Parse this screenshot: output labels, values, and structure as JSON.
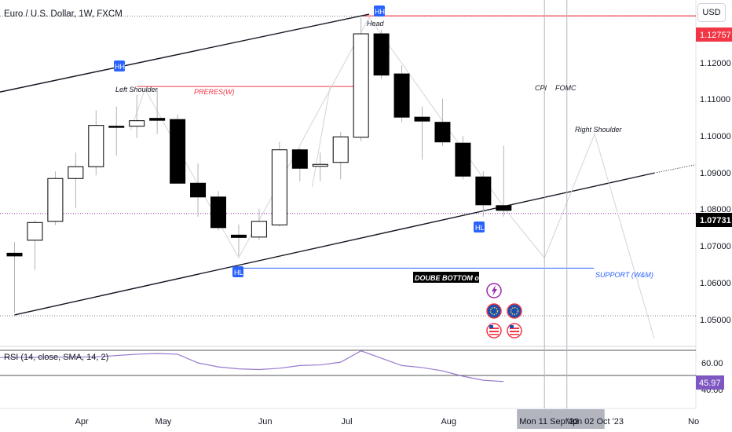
{
  "title": "Euro / U.S. Dollar, 1W, FXCM",
  "currency_button": "USD",
  "chart_data": {
    "type": "candlestick",
    "symbol": "Euro / U.S. Dollar",
    "interval": "1W",
    "source": "FXCM",
    "y_ticks": [
      "1.12000",
      "1.11000",
      "1.10000",
      "1.09000",
      "1.08000",
      "1.07000",
      "1.06000",
      "1.05000"
    ],
    "y_tick_values": [
      1.12,
      1.11,
      1.1,
      1.09,
      1.08,
      1.07,
      1.06,
      1.05
    ],
    "ylim": [
      1.0435,
      1.1316
    ],
    "x_ticks": [
      "Apr",
      "May",
      "Jun",
      "Jul",
      "Aug"
    ],
    "x_tick_index": [
      3.3,
      7.3,
      12.3,
      16.3,
      21.3
    ],
    "crosshair_dates": [
      "Mon 11 Sep '23",
      "Mon 02 Oct '23"
    ],
    "crosshair_index": [
      26.0,
      27.1
    ],
    "right_edge_label": "No",
    "price_labels": [
      {
        "value": "1.12757",
        "price": 1.12757,
        "color": "#f23645"
      },
      {
        "value": "1.07731",
        "price": 1.07731,
        "color": "#000000"
      }
    ],
    "candles": [
      {
        "o": 1.0672,
        "h": 1.07,
        "l": 1.052,
        "c": 1.0665
      },
      {
        "o": 1.0705,
        "h": 1.0755,
        "l": 1.063,
        "c": 1.075
      },
      {
        "o": 1.0753,
        "h": 1.088,
        "l": 1.0743,
        "c": 1.0862
      },
      {
        "o": 1.0862,
        "h": 1.0928,
        "l": 1.0787,
        "c": 1.0892
      },
      {
        "o": 1.0892,
        "h": 1.1035,
        "l": 1.087,
        "c": 1.0997
      },
      {
        "o": 1.0995,
        "h": 1.1045,
        "l": 1.092,
        "c": 1.0993
      },
      {
        "o": 1.0995,
        "h": 1.1075,
        "l": 1.0965,
        "c": 1.1009
      },
      {
        "o": 1.1015,
        "h": 1.109,
        "l": 1.0975,
        "c": 1.101
      },
      {
        "o": 1.1012,
        "h": 1.1025,
        "l": 1.085,
        "c": 1.085
      },
      {
        "o": 1.085,
        "h": 1.09,
        "l": 1.0765,
        "c": 1.0815
      },
      {
        "o": 1.0815,
        "h": 1.083,
        "l": 1.073,
        "c": 1.0737
      },
      {
        "o": 1.0718,
        "h": 1.0745,
        "l": 1.0665,
        "c": 1.0712
      },
      {
        "o": 1.0713,
        "h": 1.0785,
        "l": 1.0705,
        "c": 1.0753
      },
      {
        "o": 1.0744,
        "h": 1.0955,
        "l": 1.074,
        "c": 1.0935
      },
      {
        "o": 1.0935,
        "h": 1.094,
        "l": 1.0855,
        "c": 1.0888
      },
      {
        "o": 1.0893,
        "h": 1.0928,
        "l": 1.0855,
        "c": 1.0898
      },
      {
        "o": 1.0903,
        "h": 1.098,
        "l": 1.086,
        "c": 1.0968
      },
      {
        "o": 1.0967,
        "h": 1.127,
        "l": 1.0957,
        "c": 1.123
      },
      {
        "o": 1.123,
        "h": 1.124,
        "l": 1.1115,
        "c": 1.1125
      },
      {
        "o": 1.1128,
        "h": 1.115,
        "l": 1.1005,
        "c": 1.1018
      },
      {
        "o": 1.1018,
        "h": 1.1045,
        "l": 1.091,
        "c": 1.1008
      },
      {
        "o": 1.1005,
        "h": 1.1065,
        "l": 1.0945,
        "c": 1.0955
      },
      {
        "o": 1.0952,
        "h": 1.097,
        "l": 1.086,
        "c": 1.0868
      },
      {
        "o": 1.0866,
        "h": 1.088,
        "l": 1.0765,
        "c": 1.0795
      },
      {
        "o": 1.0793,
        "h": 1.0945,
        "l": 1.0765,
        "c": 1.0781
      }
    ],
    "annotations": {
      "head": "Head",
      "left_shoulder": "Left Shoulder",
      "right_shoulder": "Right Shoulder",
      "preres": "PRERES(W)",
      "cpi": "CPI",
      "fomc": "FOMC",
      "double_bottom": "DOUBE BOTTOM or L?",
      "support": "SUPPORT (W&M)",
      "hh_label": "HH",
      "hl_label": "HL"
    },
    "rsi": {
      "label": "RSI (14, close, SMA, 14, 2)",
      "current_value": "45.97",
      "current": 45.97,
      "ticks": [
        "60.00",
        "40.00"
      ],
      "tick_values": [
        60,
        40
      ],
      "line_color": "#7e57c2",
      "values": [
        null,
        null,
        null,
        null,
        64.5,
        65.5,
        66.5,
        67.0,
        66.5,
        60.0,
        57.0,
        55.5,
        55.0,
        56.0,
        58.0,
        58.5,
        60.5,
        69.0,
        63.5,
        58.0,
        56.5,
        54.0,
        50.0,
        47.0,
        46.0
      ]
    },
    "grid": false
  }
}
